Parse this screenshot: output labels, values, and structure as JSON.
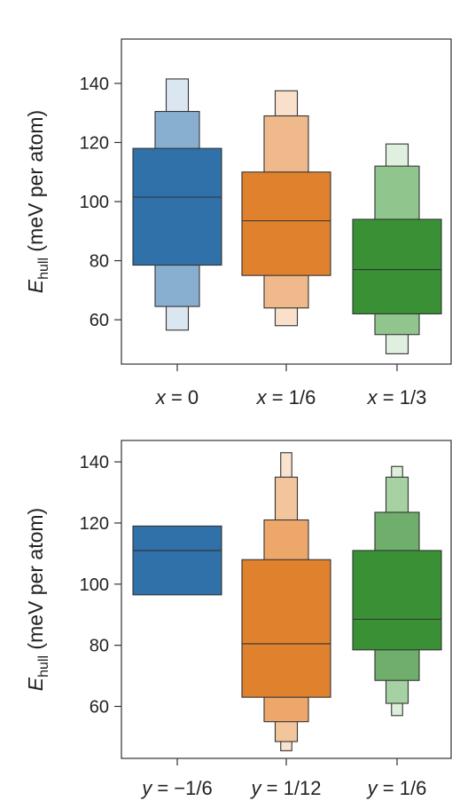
{
  "chart_data": [
    {
      "type": "boxen",
      "ylabel": {
        "symbol": "E",
        "subscript": "hull",
        "unit": " (meV per atom)"
      },
      "yticks": [
        60,
        80,
        100,
        120,
        140
      ],
      "ylim": [
        45,
        155
      ],
      "grid": false,
      "categories": [
        {
          "label": {
            "var": "x",
            "rest": " = 0"
          },
          "base_color": "#2f71a8",
          "median": 101.5,
          "levels": [
            {
              "low": 78.5,
              "high": 118,
              "fill": "#2f71a8"
            },
            {
              "low": 64.5,
              "high": 130.5,
              "fill": "#89afd0"
            },
            {
              "low": 56.5,
              "high": 141.5,
              "fill": "#dae6f0"
            }
          ]
        },
        {
          "label": {
            "var": "x",
            "rest": " = 1/6"
          },
          "base_color": "#e0812e",
          "median": 93.5,
          "levels": [
            {
              "low": 75,
              "high": 110,
              "fill": "#e0812e"
            },
            {
              "low": 64,
              "high": 129,
              "fill": "#f0b98b"
            },
            {
              "low": 58,
              "high": 137.5,
              "fill": "#f9e0cb"
            }
          ]
        },
        {
          "label": {
            "var": "x",
            "rest": " = 1/3"
          },
          "base_color": "#3a9135",
          "median": 77,
          "levels": [
            {
              "low": 62,
              "high": 94,
              "fill": "#3a9135"
            },
            {
              "low": 55,
              "high": 112,
              "fill": "#90c68d"
            },
            {
              "low": 48.5,
              "high": 119.5,
              "fill": "#e0f0de"
            }
          ]
        }
      ]
    },
    {
      "type": "boxen",
      "ylabel": {
        "symbol": "E",
        "subscript": "hull",
        "unit": " (meV per atom)"
      },
      "yticks": [
        60,
        80,
        100,
        120,
        140
      ],
      "ylim": [
        43,
        147
      ],
      "grid": false,
      "categories": [
        {
          "label": {
            "var": "y",
            "rest": " = −1/6"
          },
          "base_color": "#2f71a8",
          "median": 111,
          "levels": [
            {
              "low": 96.5,
              "high": 119,
              "fill": "#2f71a8"
            }
          ]
        },
        {
          "label": {
            "var": "y",
            "rest": " = 1/12"
          },
          "base_color": "#e0812e",
          "median": 80.5,
          "levels": [
            {
              "low": 63,
              "high": 108,
              "fill": "#e0812e"
            },
            {
              "low": 55,
              "high": 121,
              "fill": "#eda76b"
            },
            {
              "low": 48.5,
              "high": 135,
              "fill": "#f3c59d"
            },
            {
              "low": 45.5,
              "high": 143,
              "fill": "#f9e3cf"
            }
          ]
        },
        {
          "label": {
            "var": "y",
            "rest": " = 1/6"
          },
          "base_color": "#3a9135",
          "median": 88.5,
          "levels": [
            {
              "low": 78.5,
              "high": 111,
              "fill": "#3a9135"
            },
            {
              "low": 68.5,
              "high": 123.5,
              "fill": "#6fae6b"
            },
            {
              "low": 61,
              "high": 135,
              "fill": "#a6d1a3"
            },
            {
              "low": 57,
              "high": 138.5,
              "fill": "#dcefda"
            }
          ]
        }
      ]
    }
  ]
}
